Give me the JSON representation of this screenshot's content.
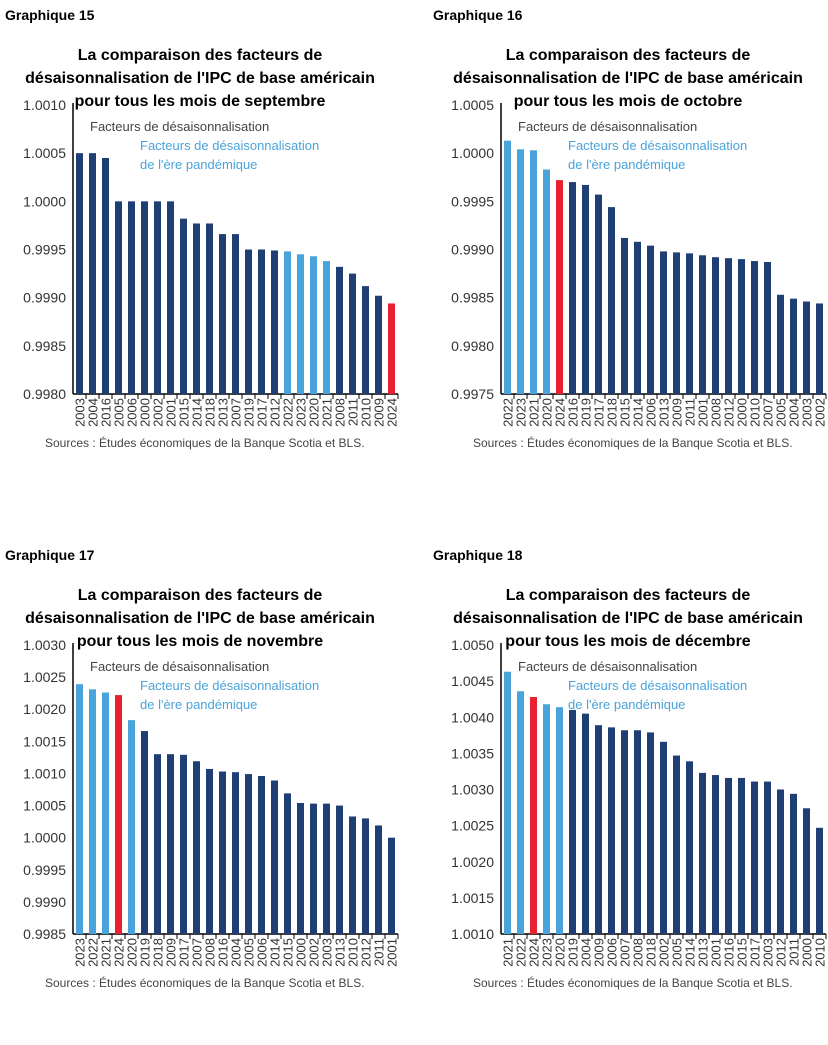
{
  "colors": {
    "regular": "#1f3f74",
    "pandemic": "#4aa3db",
    "current": "#e8202f",
    "axis": "#000000",
    "text": "#333333"
  },
  "chart_data": [
    {
      "type": "bar",
      "heading": "Graphique 15",
      "title": [
        "La comparaison des facteurs de",
        "désaisonnalisation de l'IPC de base américain",
        "pour tous les mois de septembre"
      ],
      "legend": [
        "Facteurs de désaisonnalisation",
        "Facteurs de désaisonnalisation",
        "de l'ère pandémique"
      ],
      "source": "Sources : Études économiques de la Banque Scotia et BLS.",
      "ylim": [
        0.998,
        1.001
      ],
      "yticks": [
        "0.9980",
        "0.9985",
        "0.9990",
        "0.9995",
        "1.0000",
        "1.0005",
        "1.0010"
      ],
      "categories": [
        "2003",
        "2004",
        "2016",
        "2005",
        "2006",
        "2000",
        "2002",
        "2001",
        "2015",
        "2014",
        "2018",
        "2013",
        "2007",
        "2019",
        "2017",
        "2012",
        "2022",
        "2023",
        "2020",
        "2021",
        "2008",
        "2011",
        "2010",
        "2009",
        "2024"
      ],
      "values": [
        1.0005,
        1.0005,
        1.00045,
        1.0,
        1.0,
        1.0,
        1.0,
        1.0,
        0.99982,
        0.99977,
        0.99977,
        0.99966,
        0.99966,
        0.9995,
        0.9995,
        0.99949,
        0.99948,
        0.99945,
        0.99943,
        0.99938,
        0.99932,
        0.99925,
        0.99912,
        0.99902,
        0.99894
      ],
      "pandemic": [
        "2020",
        "2021",
        "2022",
        "2023"
      ],
      "current": "2024"
    },
    {
      "type": "bar",
      "heading": "Graphique 16",
      "title": [
        "La comparaison des facteurs de",
        "désaisonnalisation de l'IPC de base américain",
        "pour tous les mois de octobre"
      ],
      "legend": [
        "Facteurs de désaisonnalisation",
        "Facteurs de désaisonnalisation",
        "de l'ère pandémique"
      ],
      "source": "Sources : Études économiques de la Banque Scotia et BLS.",
      "ylim": [
        0.9975,
        1.0005
      ],
      "yticks": [
        "0.9975",
        "0.9980",
        "0.9985",
        "0.9990",
        "0.9995",
        "1.0000",
        "1.0005"
      ],
      "categories": [
        "2022",
        "2023",
        "2021",
        "2020",
        "2024",
        "2016",
        "2019",
        "2017",
        "2018",
        "2015",
        "2014",
        "2006",
        "2013",
        "2009",
        "2011",
        "2001",
        "2008",
        "2012",
        "2000",
        "2010",
        "2007",
        "2005",
        "2004",
        "2003",
        "2002"
      ],
      "values": [
        1.00013,
        1.00004,
        1.00003,
        0.99983,
        0.99972,
        0.9997,
        0.99967,
        0.99957,
        0.99944,
        0.99912,
        0.99908,
        0.99904,
        0.99898,
        0.99897,
        0.99896,
        0.99894,
        0.99892,
        0.99891,
        0.9989,
        0.99888,
        0.99887,
        0.99853,
        0.99849,
        0.99846,
        0.99844
      ],
      "pandemic": [
        "2020",
        "2021",
        "2022",
        "2023"
      ],
      "current": "2024"
    },
    {
      "type": "bar",
      "heading": "Graphique 17",
      "title": [
        "La comparaison des facteurs de",
        "désaisonnalisation de l'IPC de base américain",
        "pour tous les mois de novembre"
      ],
      "legend": [
        "Facteurs de désaisonnalisation",
        "Facteurs de désaisonnalisation",
        "de l'ère pandémique"
      ],
      "source": "Sources : Études économiques de la Banque Scotia et BLS.",
      "ylim": [
        0.9985,
        1.003
      ],
      "yticks": [
        "0.9985",
        "0.9990",
        "0.9995",
        "1.0000",
        "1.0005",
        "1.0010",
        "1.0015",
        "1.0020",
        "1.0025",
        "1.0030"
      ],
      "categories": [
        "2023",
        "2022",
        "2021",
        "2024",
        "2020",
        "2019",
        "2018",
        "2009",
        "2017",
        "2007",
        "2008",
        "2016",
        "2004",
        "2005",
        "2006",
        "2014",
        "2015",
        "2000",
        "2002",
        "2003",
        "2013",
        "2010",
        "2012",
        "2011",
        "2001"
      ],
      "values": [
        1.00239,
        1.00231,
        1.00226,
        1.00222,
        1.00183,
        1.00166,
        1.0013,
        1.0013,
        1.00129,
        1.00119,
        1.00107,
        1.00103,
        1.00102,
        1.00099,
        1.00096,
        1.00089,
        1.00069,
        1.00054,
        1.00053,
        1.00053,
        1.0005,
        1.00033,
        1.0003,
        1.00019,
        1.0
      ],
      "pandemic": [
        "2020",
        "2021",
        "2022",
        "2023"
      ],
      "current": "2024"
    },
    {
      "type": "bar",
      "heading": "Graphique 18",
      "title": [
        "La comparaison des facteurs de",
        "désaisonnalisation de l'IPC de base américain",
        "pour tous les mois de décembre"
      ],
      "legend": [
        "Facteurs de désaisonnalisation",
        "Facteurs de désaisonnalisation",
        "de l'ère pandémique"
      ],
      "source": "Sources : Études économiques de la Banque Scotia et BLS.",
      "ylim": [
        1.001,
        1.005
      ],
      "yticks": [
        "1.0010",
        "1.0015",
        "1.0020",
        "1.0025",
        "1.0030",
        "1.0035",
        "1.0040",
        "1.0045",
        "1.0050"
      ],
      "categories": [
        "2021",
        "2022",
        "2024",
        "2023",
        "2020",
        "2019",
        "2004",
        "2009",
        "2006",
        "2007",
        "2008",
        "2018",
        "2002",
        "2005",
        "2014",
        "2013",
        "2001",
        "2016",
        "2015",
        "2017",
        "2003",
        "2012",
        "2011",
        "2000",
        "2010"
      ],
      "values": [
        1.00463,
        1.00436,
        1.00428,
        1.00418,
        1.00414,
        1.0041,
        1.00405,
        1.00389,
        1.00386,
        1.00382,
        1.00382,
        1.00379,
        1.00366,
        1.00347,
        1.00339,
        1.00323,
        1.0032,
        1.00316,
        1.00316,
        1.00311,
        1.00311,
        1.003,
        1.00294,
        1.00274,
        1.00247
      ],
      "pandemic": [
        "2020",
        "2021",
        "2022",
        "2023"
      ],
      "current": "2024"
    }
  ]
}
